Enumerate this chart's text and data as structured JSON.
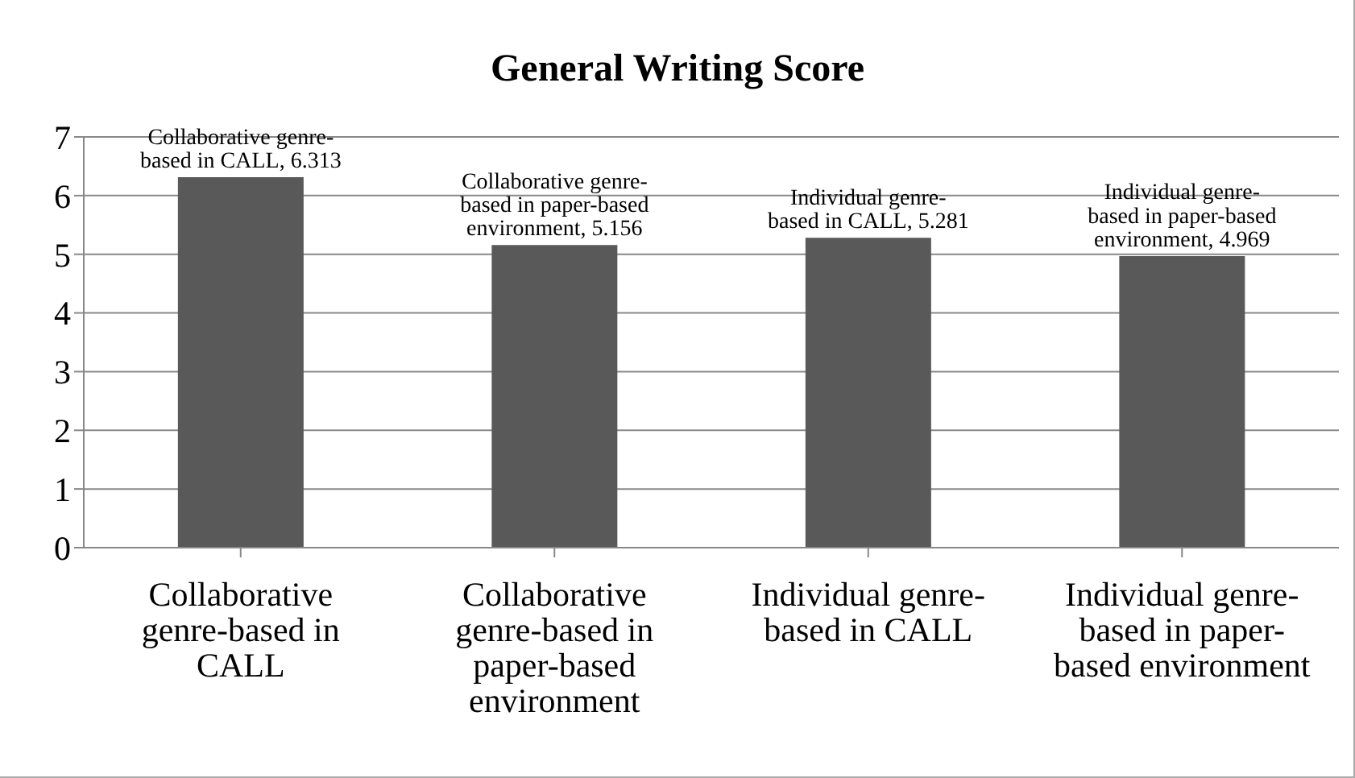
{
  "chart_data": {
    "type": "bar",
    "title": "General Writing Score",
    "categories": [
      "Collaborative genre-based in CALL",
      "Collaborative genre-based in paper-based environment",
      "Individual genre-based in CALL",
      "Individual genre-based in paper-based environment"
    ],
    "values": [
      6.313,
      5.156,
      5.281,
      4.969
    ],
    "value_labels": [
      "Collaborative genre-based in CALL, 6.313",
      "Collaborative genre-based in paper-based environment, 5.156",
      "Individual genre-based in CALL, 5.281",
      "Individual genre-based in paper-based environment, 4.969"
    ],
    "color": "#595959",
    "ylim": [
      0,
      7
    ],
    "yticks": [
      0,
      1,
      2,
      3,
      4,
      5,
      6,
      7
    ],
    "grid": "y",
    "legend": false
  }
}
